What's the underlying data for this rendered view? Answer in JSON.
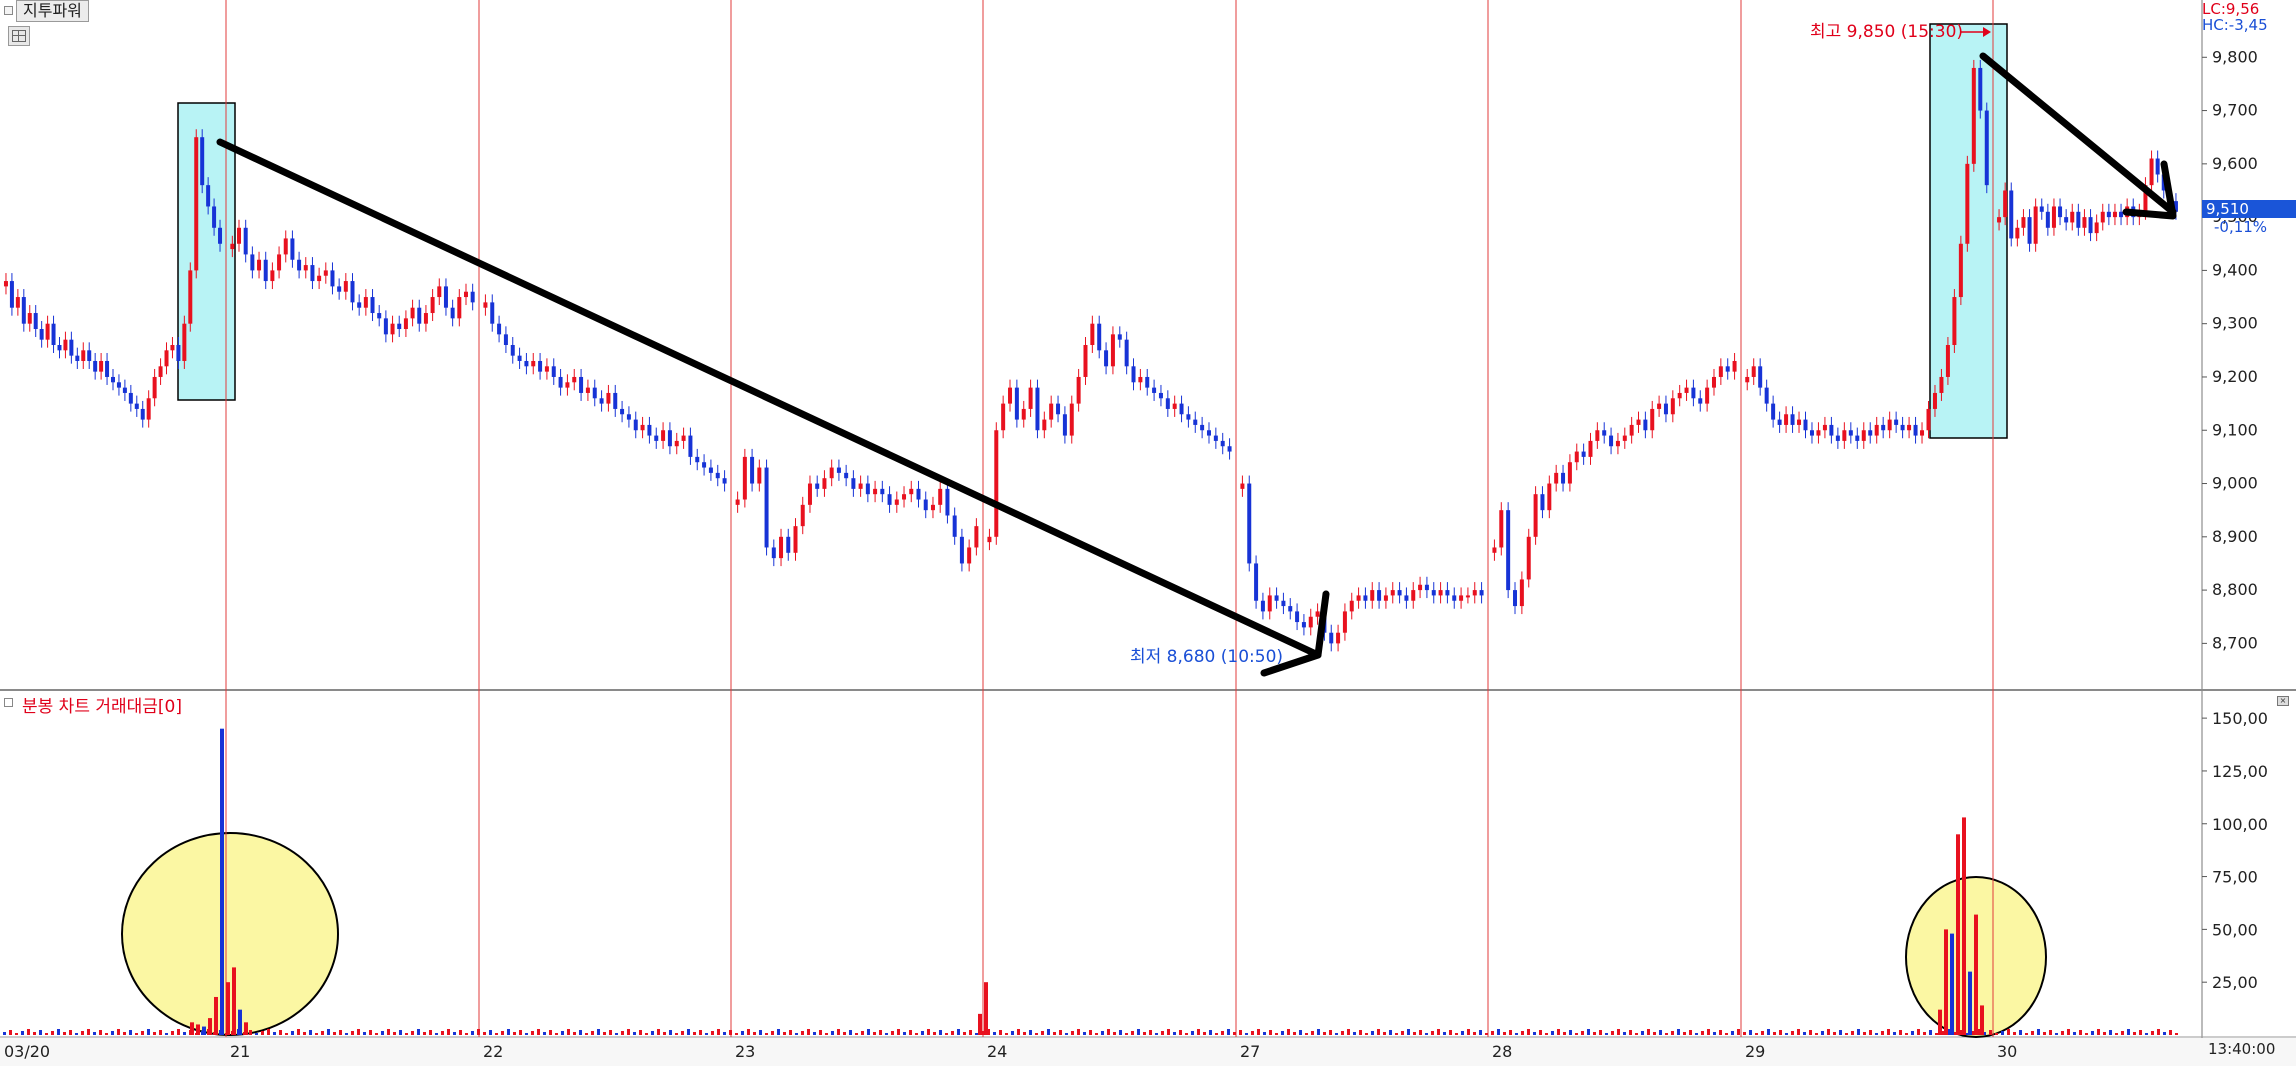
{
  "panel": {
    "title": "지투파워",
    "volume_title": "분봉 차트 거래대금[0]",
    "lc_label": "LC:9,56",
    "hc_label": "HC:-3,45",
    "current_price": "9,510",
    "current_change": "-0,11%",
    "time_label": "13:40:00"
  },
  "chart_data": [
    {
      "type": "candlestick",
      "title": "",
      "xlabel": "",
      "ylabel": "",
      "ylim": [
        8620,
        9900
      ],
      "yticks": [
        "9,800",
        "9,700",
        "9,600",
        "9,500",
        "9,400",
        "9,300",
        "9,200",
        "9,100",
        "9,000",
        "8,900",
        "8,800",
        "8,700"
      ],
      "ytick_values": [
        9800,
        9700,
        9600,
        9500,
        9400,
        9300,
        9200,
        9100,
        9000,
        8900,
        8800,
        8700
      ],
      "days": [
        "03/20",
        "21",
        "22",
        "23",
        "24",
        "27",
        "28",
        "29",
        "30"
      ],
      "series": [
        {
          "name": "",
          "day": "03/20",
          "prices": [
            9380,
            9330,
            9350,
            9300,
            9320,
            9290,
            9270,
            9300,
            9260,
            9250,
            9270,
            9240,
            9230,
            9250,
            9230,
            9210,
            9230,
            9200,
            9190,
            9180,
            9170,
            9150,
            9140,
            9120,
            9160,
            9200,
            9220,
            9250,
            9260,
            9230,
            9300,
            9400,
            9650,
            9560,
            9520,
            9480,
            9450
          ]
        },
        {
          "name": "",
          "day": "21",
          "prices": [
            9450,
            9480,
            9430,
            9400,
            9420,
            9380,
            9400,
            9430,
            9460,
            9420,
            9400,
            9410,
            9380,
            9390,
            9400,
            9370,
            9360,
            9380,
            9340,
            9330,
            9350,
            9320,
            9310,
            9280,
            9300,
            9290,
            9310,
            9330,
            9300,
            9320,
            9350,
            9370,
            9330,
            9310,
            9350,
            9360,
            9340
          ]
        },
        {
          "name": "",
          "day": "22",
          "prices": [
            9340,
            9300,
            9280,
            9260,
            9240,
            9230,
            9220,
            9230,
            9210,
            9220,
            9200,
            9180,
            9190,
            9200,
            9170,
            9180,
            9160,
            9150,
            9170,
            9140,
            9130,
            9120,
            9100,
            9110,
            9090,
            9080,
            9100,
            9070,
            9080,
            9090,
            9050,
            9040,
            9030,
            9020,
            9010,
            9000
          ]
        },
        {
          "name": "",
          "day": "23",
          "prices": [
            8970,
            9050,
            9000,
            9030,
            8880,
            8860,
            8900,
            8870,
            8920,
            8960,
            9000,
            8990,
            9010,
            9030,
            9020,
            9010,
            8990,
            9000,
            8980,
            8990,
            8980,
            8960,
            8970,
            8980,
            8990,
            8970,
            8950,
            8960,
            8990,
            8940,
            8900,
            8850,
            8880,
            8920
          ]
        },
        {
          "name": "",
          "day": "24",
          "prices": [
            8900,
            9100,
            9150,
            9180,
            9120,
            9140,
            9180,
            9100,
            9120,
            9150,
            9130,
            9090,
            9150,
            9200,
            9260,
            9300,
            9250,
            9220,
            9280,
            9270,
            9220,
            9190,
            9200,
            9180,
            9170,
            9160,
            9140,
            9150,
            9130,
            9120,
            9110,
            9100,
            9090,
            9080,
            9070,
            9060
          ]
        },
        {
          "name": "",
          "day": "27",
          "prices": [
            9000,
            8850,
            8780,
            8760,
            8790,
            8780,
            8770,
            8760,
            8740,
            8730,
            8750,
            8760,
            8720,
            8700,
            8720,
            8760,
            8780,
            8790,
            8780,
            8800,
            8780,
            8790,
            8800,
            8790,
            8780,
            8800,
            8810,
            8800,
            8790,
            8800,
            8790,
            8780,
            8790,
            8790,
            8800,
            8790
          ]
        },
        {
          "name": "",
          "day": "28",
          "prices": [
            8880,
            8950,
            8800,
            8770,
            8820,
            8900,
            8980,
            8950,
            9000,
            9020,
            9000,
            9040,
            9060,
            9050,
            9080,
            9100,
            9090,
            9070,
            9080,
            9090,
            9110,
            9120,
            9100,
            9140,
            9150,
            9130,
            9160,
            9170,
            9180,
            9160,
            9150,
            9180,
            9200,
            9220,
            9210,
            9230
          ]
        },
        {
          "name": "",
          "day": "29",
          "prices": [
            9200,
            9220,
            9180,
            9150,
            9120,
            9110,
            9130,
            9110,
            9120,
            9100,
            9090,
            9100,
            9110,
            9090,
            9080,
            9100,
            9090,
            9080,
            9100,
            9090,
            9110,
            9100,
            9120,
            9110,
            9100,
            9110,
            9090,
            9100,
            9140,
            9170,
            9200,
            9260,
            9350,
            9450,
            9600,
            9780,
            9700,
            9560
          ]
        },
        {
          "name": "",
          "day": "30",
          "prices": [
            9500,
            9550,
            9460,
            9480,
            9500,
            9450,
            9520,
            9510,
            9480,
            9520,
            9500,
            9490,
            9510,
            9480,
            9500,
            9470,
            9490,
            9510,
            9500,
            9510,
            9500,
            9520,
            9500,
            9510,
            9560,
            9610,
            9580,
            9550,
            9530,
            9510
          ]
        }
      ],
      "annotations": [
        {
          "text": "최고 9,850 (15:30)",
          "value": 9850
        },
        {
          "text": "최저 8,680 (10:50)",
          "value": 8680
        }
      ]
    },
    {
      "type": "bar",
      "title": "",
      "ylim": [
        0,
        160
      ],
      "yticks": [
        "150,00",
        "125,00",
        "100,00",
        "75,00",
        "50,00",
        "25,00"
      ],
      "ytick_values": [
        150,
        125,
        100,
        75,
        50,
        25
      ],
      "spikes": [
        {
          "day": "03/20",
          "values": [
            6,
            5,
            4,
            8,
            18,
            145,
            25,
            32,
            12,
            6
          ]
        },
        {
          "day": "24",
          "values": [
            10,
            25
          ]
        },
        {
          "day": "29",
          "values": [
            12,
            50,
            48,
            95,
            103,
            30,
            57,
            14
          ]
        }
      ]
    }
  ],
  "colors": {
    "up": "#e8111f",
    "down": "#1733d6",
    "divider": "#e23b3b",
    "highlight": "#b8f3f5",
    "circle": "#fbf7a3"
  }
}
